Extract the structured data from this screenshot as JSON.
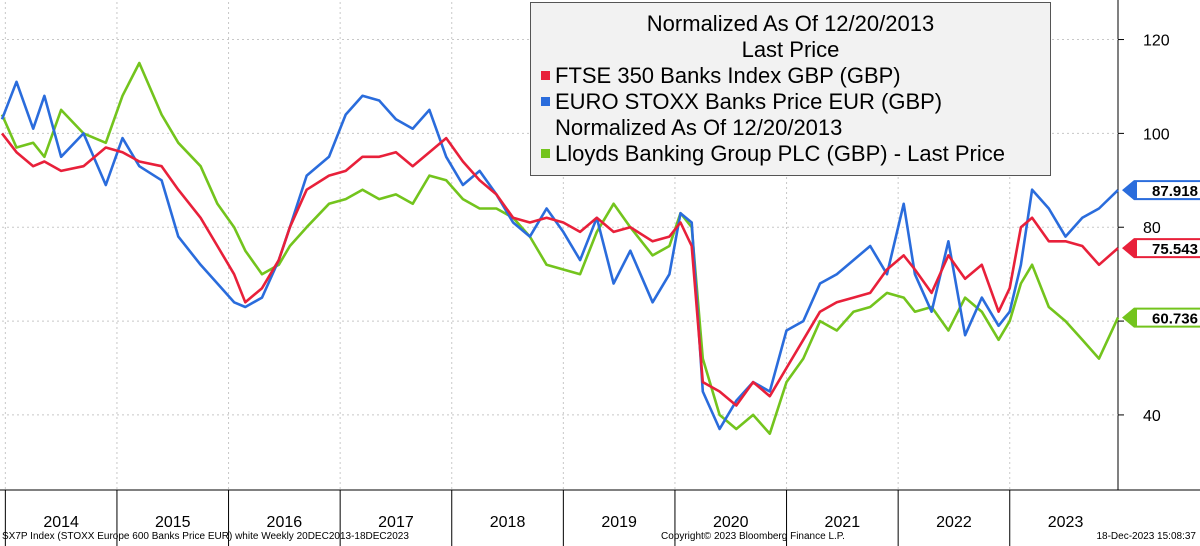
{
  "chart_data": {
    "type": "line",
    "title": "Normalized As Of 12/20/2013",
    "subtitle": "Last Price",
    "x_range": [
      2013.97,
      2023.97
    ],
    "ylim": [
      24,
      128
    ],
    "yticks": [
      40,
      60,
      80,
      100,
      120
    ],
    "ytick_labels": [
      "40",
      "",
      "80",
      "100",
      "120"
    ],
    "xtick_labels": [
      "2014",
      "2015",
      "2016",
      "2017",
      "2018",
      "2019",
      "2020",
      "2021",
      "2022",
      "2023"
    ],
    "grid": true,
    "legend_position": "top-right",
    "legend": {
      "line1": "Normalized As Of 12/20/2013",
      "line2": "Last Price",
      "series_red": "FTSE 350 Banks Index GBP (GBP)",
      "series_blue": "EURO STOXX Banks Price EUR (GBP)",
      "continuation": "Normalized As Of 12/20/2013",
      "series_green": "Lloyds Banking Group PLC (GBP) - Last Price"
    },
    "series": [
      {
        "name": "EURO STOXX Banks Price EUR (GBP)",
        "color": "#2a6cdc",
        "last_label": "87.918",
        "x": [
          2013.97,
          2014.1,
          2014.25,
          2014.35,
          2014.5,
          2014.7,
          2014.9,
          2015.05,
          2015.2,
          2015.4,
          2015.55,
          2015.75,
          2015.9,
          2016.05,
          2016.15,
          2016.3,
          2016.45,
          2016.55,
          2016.7,
          2016.9,
          2017.05,
          2017.2,
          2017.35,
          2017.5,
          2017.65,
          2017.8,
          2017.95,
          2018.1,
          2018.25,
          2018.4,
          2018.55,
          2018.7,
          2018.85,
          2019.0,
          2019.15,
          2019.3,
          2019.45,
          2019.6,
          2019.8,
          2019.95,
          2020.05,
          2020.15,
          2020.25,
          2020.4,
          2020.55,
          2020.7,
          2020.85,
          2021.0,
          2021.15,
          2021.3,
          2021.45,
          2021.6,
          2021.75,
          2021.9,
          2022.05,
          2022.15,
          2022.3,
          2022.45,
          2022.6,
          2022.75,
          2022.9,
          2023.0,
          2023.1,
          2023.2,
          2023.35,
          2023.5,
          2023.65,
          2023.8,
          2023.97
        ],
        "values": [
          103,
          111,
          101,
          108,
          95,
          100,
          89,
          99,
          93,
          90,
          78,
          72,
          68,
          64,
          63,
          65,
          73,
          80,
          91,
          95,
          104,
          108,
          107,
          103,
          101,
          105,
          95,
          89,
          92,
          87,
          81,
          78,
          84,
          79,
          73,
          82,
          68,
          75,
          64,
          70,
          83,
          81,
          45,
          37,
          43,
          47,
          45,
          58,
          60,
          68,
          70,
          73,
          76,
          70,
          85,
          70,
          62,
          77,
          57,
          65,
          59,
          62,
          72,
          88,
          84,
          78,
          82,
          84,
          87.918
        ]
      },
      {
        "name": "FTSE 350 Banks Index GBP (GBP)",
        "color": "#e8203a",
        "last_label": "75.543",
        "x": [
          2013.97,
          2014.1,
          2014.25,
          2014.35,
          2014.5,
          2014.7,
          2014.9,
          2015.05,
          2015.2,
          2015.4,
          2015.55,
          2015.75,
          2015.9,
          2016.05,
          2016.15,
          2016.3,
          2016.45,
          2016.55,
          2016.7,
          2016.9,
          2017.05,
          2017.2,
          2017.35,
          2017.5,
          2017.65,
          2017.8,
          2017.95,
          2018.1,
          2018.25,
          2018.4,
          2018.55,
          2018.7,
          2018.85,
          2019.0,
          2019.15,
          2019.3,
          2019.45,
          2019.6,
          2019.8,
          2019.95,
          2020.05,
          2020.15,
          2020.25,
          2020.4,
          2020.55,
          2020.7,
          2020.85,
          2021.0,
          2021.15,
          2021.3,
          2021.45,
          2021.6,
          2021.75,
          2021.9,
          2022.05,
          2022.15,
          2022.3,
          2022.45,
          2022.6,
          2022.75,
          2022.9,
          2023.0,
          2023.1,
          2023.2,
          2023.35,
          2023.5,
          2023.65,
          2023.8,
          2023.97
        ],
        "values": [
          100,
          96,
          93,
          94,
          92,
          93,
          97,
          96,
          94,
          93,
          88,
          82,
          76,
          70,
          64,
          67,
          73,
          80,
          88,
          91,
          92,
          95,
          95,
          96,
          93,
          96,
          99,
          94,
          90,
          87,
          82,
          81,
          82,
          81,
          79,
          82,
          79,
          80,
          77,
          78,
          81,
          76,
          47,
          45,
          42,
          47,
          44,
          50,
          56,
          62,
          64,
          65,
          66,
          71,
          74,
          71,
          66,
          74,
          69,
          72,
          62,
          67,
          80,
          82,
          77,
          77,
          76,
          72,
          75.543
        ]
      },
      {
        "name": "Lloyds Banking Group PLC (GBP) - Last Price",
        "color": "#73c41d",
        "last_label": "60.736",
        "x": [
          2013.97,
          2014.1,
          2014.25,
          2014.35,
          2014.5,
          2014.7,
          2014.9,
          2015.05,
          2015.2,
          2015.4,
          2015.55,
          2015.75,
          2015.9,
          2016.05,
          2016.15,
          2016.3,
          2016.45,
          2016.55,
          2016.7,
          2016.9,
          2017.05,
          2017.2,
          2017.35,
          2017.5,
          2017.65,
          2017.8,
          2017.95,
          2018.1,
          2018.25,
          2018.4,
          2018.55,
          2018.7,
          2018.85,
          2019.0,
          2019.15,
          2019.3,
          2019.45,
          2019.6,
          2019.8,
          2019.95,
          2020.05,
          2020.15,
          2020.25,
          2020.4,
          2020.55,
          2020.7,
          2020.85,
          2021.0,
          2021.15,
          2021.3,
          2021.45,
          2021.6,
          2021.75,
          2021.9,
          2022.05,
          2022.15,
          2022.3,
          2022.45,
          2022.6,
          2022.75,
          2022.9,
          2023.0,
          2023.1,
          2023.2,
          2023.35,
          2023.5,
          2023.65,
          2023.8,
          2023.97
        ],
        "values": [
          104,
          97,
          98,
          95,
          105,
          100,
          98,
          108,
          115,
          104,
          98,
          93,
          85,
          80,
          75,
          70,
          72,
          76,
          80,
          85,
          86,
          88,
          86,
          87,
          85,
          91,
          90,
          86,
          84,
          84,
          82,
          78,
          72,
          71,
          70,
          79,
          85,
          80,
          74,
          76,
          83,
          80,
          52,
          40,
          37,
          40,
          36,
          47,
          52,
          60,
          58,
          62,
          63,
          66,
          65,
          62,
          63,
          58,
          65,
          62,
          56,
          60,
          68,
          72,
          63,
          60,
          56,
          52,
          60.736
        ]
      }
    ]
  },
  "footer": {
    "left": "SX7P Index (STOXX Europe 600 Banks Price EUR) white  Weekly 20DEC2013-18DEC2023",
    "center": "Copyright© 2023 Bloomberg Finance L.P.",
    "right": "18-Dec-2023 15:08:37"
  }
}
